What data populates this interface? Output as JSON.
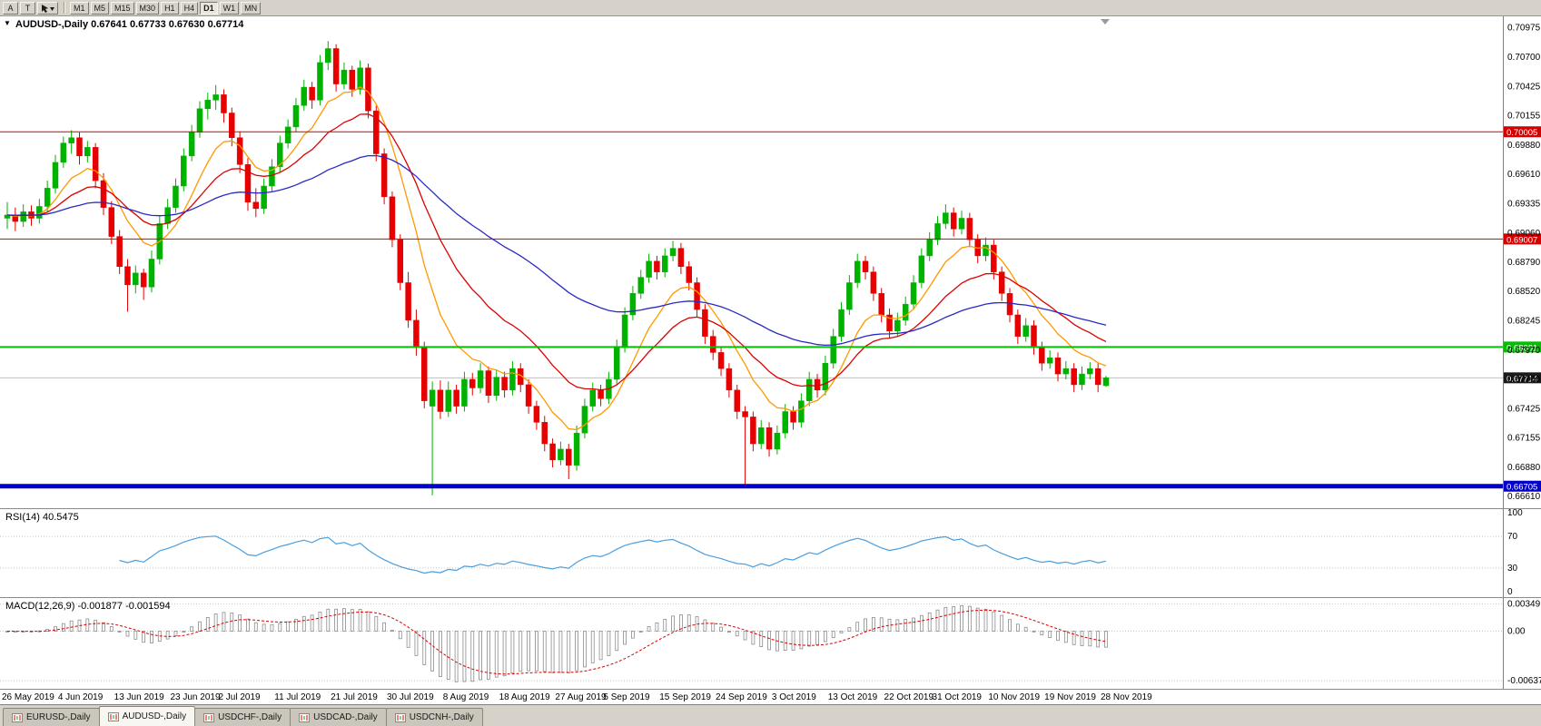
{
  "toolbar": {
    "buttons": [
      {
        "label": "A"
      },
      {
        "label": "T"
      }
    ],
    "timeframes": [
      "M1",
      "M5",
      "M15",
      "M30",
      "H1",
      "H4",
      "D1",
      "W1",
      "MN"
    ],
    "active_timeframe": "D1"
  },
  "chart": {
    "title_text": "AUDUSD-,Daily  0.67641 0.67733 0.67630 0.67714",
    "symbol": "AUDUSD-",
    "period": "Daily"
  },
  "chart_data": {
    "type": "candlestick",
    "symbol": "AUDUSD",
    "timeframe": "Daily",
    "last_ohlc": {
      "open": 0.67641,
      "high": 0.67733,
      "low": 0.6763,
      "close": 0.67714
    },
    "ylim": [
      0.665,
      0.7108
    ],
    "y_axis_labels": [
      "0.70975",
      "0.70700",
      "0.70425",
      "0.70155",
      "0.69880",
      "0.69610",
      "0.69335",
      "0.69060",
      "0.68790",
      "0.68520",
      "0.68245",
      "0.67970",
      "0.67700",
      "0.67425",
      "0.67155",
      "0.66880",
      "0.66610"
    ],
    "x_labels": [
      "26 May 2019",
      "4 Jun 2019",
      "13 Jun 2019",
      "23 Jun 2019",
      "2 Jul 2019",
      "11 Jul 2019",
      "21 Jul 2019",
      "30 Jul 2019",
      "8 Aug 2019",
      "18 Aug 2019",
      "27 Aug 2019",
      "5 Sep 2019",
      "15 Sep 2019",
      "24 Sep 2019",
      "3 Oct 2019",
      "13 Oct 2019",
      "22 Oct 2019",
      "31 Oct 2019",
      "10 Nov 2019",
      "19 Nov 2019",
      "28 Nov 2019"
    ],
    "candles": [
      [
        0.692,
        0.6935,
        0.691,
        0.6923
      ],
      [
        0.6923,
        0.693,
        0.6908,
        0.6917
      ],
      [
        0.6917,
        0.6933,
        0.6912,
        0.6926
      ],
      [
        0.6926,
        0.6932,
        0.6913,
        0.692
      ],
      [
        0.692,
        0.6938,
        0.6915,
        0.6931
      ],
      [
        0.6931,
        0.6955,
        0.6926,
        0.6948
      ],
      [
        0.6948,
        0.6979,
        0.6943,
        0.6972
      ],
      [
        0.6972,
        0.6996,
        0.6967,
        0.699
      ],
      [
        0.699,
        0.7002,
        0.698,
        0.6995
      ],
      [
        0.6995,
        0.7,
        0.697,
        0.6978
      ],
      [
        0.6978,
        0.6992,
        0.6972,
        0.6986
      ],
      [
        0.6986,
        0.699,
        0.6948,
        0.6955
      ],
      [
        0.6955,
        0.6962,
        0.6923,
        0.693
      ],
      [
        0.693,
        0.6936,
        0.6896,
        0.6903
      ],
      [
        0.6903,
        0.6909,
        0.6868,
        0.6875
      ],
      [
        0.6875,
        0.6882,
        0.6833,
        0.6858
      ],
      [
        0.6858,
        0.6876,
        0.685,
        0.6869
      ],
      [
        0.6869,
        0.6873,
        0.6844,
        0.6856
      ],
      [
        0.6856,
        0.689,
        0.6851,
        0.6882
      ],
      [
        0.6882,
        0.6922,
        0.6877,
        0.6915
      ],
      [
        0.6915,
        0.6938,
        0.691,
        0.693
      ],
      [
        0.693,
        0.6957,
        0.6925,
        0.695
      ],
      [
        0.695,
        0.6985,
        0.6945,
        0.6978
      ],
      [
        0.6978,
        0.7007,
        0.6973,
        0.7
      ],
      [
        0.7,
        0.7029,
        0.6995,
        0.7022
      ],
      [
        0.7022,
        0.7037,
        0.7012,
        0.703
      ],
      [
        0.703,
        0.7044,
        0.7021,
        0.7035
      ],
      [
        0.7035,
        0.704,
        0.7009,
        0.7018
      ],
      [
        0.7018,
        0.7023,
        0.6987,
        0.6995
      ],
      [
        0.6995,
        0.7001,
        0.6962,
        0.697
      ],
      [
        0.697,
        0.6976,
        0.6927,
        0.6935
      ],
      [
        0.6935,
        0.6948,
        0.6921,
        0.6929
      ],
      [
        0.6929,
        0.6957,
        0.6924,
        0.695
      ],
      [
        0.695,
        0.6975,
        0.6945,
        0.6968
      ],
      [
        0.6968,
        0.6997,
        0.6963,
        0.699
      ],
      [
        0.699,
        0.7012,
        0.6985,
        0.7005
      ],
      [
        0.7005,
        0.7032,
        0.7,
        0.7025
      ],
      [
        0.7025,
        0.7049,
        0.702,
        0.7042
      ],
      [
        0.7042,
        0.7047,
        0.7022,
        0.703
      ],
      [
        0.703,
        0.7072,
        0.7025,
        0.7065
      ],
      [
        0.7065,
        0.7085,
        0.7058,
        0.7078
      ],
      [
        0.7078,
        0.7082,
        0.7038,
        0.7045
      ],
      [
        0.7045,
        0.7065,
        0.704,
        0.7058
      ],
      [
        0.7058,
        0.7062,
        0.7033,
        0.704
      ],
      [
        0.704,
        0.7067,
        0.7035,
        0.706
      ],
      [
        0.706,
        0.7064,
        0.7013,
        0.702
      ],
      [
        0.702,
        0.7025,
        0.6973,
        0.698
      ],
      [
        0.698,
        0.6985,
        0.6933,
        0.694
      ],
      [
        0.694,
        0.6945,
        0.6893,
        0.69
      ],
      [
        0.69,
        0.6905,
        0.6853,
        0.686
      ],
      [
        0.686,
        0.687,
        0.6818,
        0.6825
      ],
      [
        0.6825,
        0.6835,
        0.6792,
        0.68
      ],
      [
        0.68,
        0.6805,
        0.6743,
        0.675
      ],
      [
        0.6745,
        0.6768,
        0.6662,
        0.676
      ],
      [
        0.676,
        0.6769,
        0.6733,
        0.674
      ],
      [
        0.674,
        0.6768,
        0.6735,
        0.676
      ],
      [
        0.676,
        0.6765,
        0.6738,
        0.6745
      ],
      [
        0.6745,
        0.6777,
        0.674,
        0.677
      ],
      [
        0.677,
        0.6776,
        0.6755,
        0.6762
      ],
      [
        0.6762,
        0.6785,
        0.6757,
        0.6778
      ],
      [
        0.6778,
        0.6782,
        0.6748,
        0.6755
      ],
      [
        0.6755,
        0.6779,
        0.675,
        0.6772
      ],
      [
        0.6772,
        0.6777,
        0.6753,
        0.676
      ],
      [
        0.676,
        0.6787,
        0.6755,
        0.678
      ],
      [
        0.678,
        0.6785,
        0.6758,
        0.6765
      ],
      [
        0.6765,
        0.677,
        0.6738,
        0.6745
      ],
      [
        0.6745,
        0.675,
        0.6723,
        0.673
      ],
      [
        0.673,
        0.6736,
        0.6703,
        0.671
      ],
      [
        0.671,
        0.6715,
        0.6688,
        0.6695
      ],
      [
        0.6695,
        0.6712,
        0.669,
        0.6705
      ],
      [
        0.6705,
        0.671,
        0.6677,
        0.669
      ],
      [
        0.669,
        0.6727,
        0.6685,
        0.672
      ],
      [
        0.672,
        0.6752,
        0.6715,
        0.6745
      ],
      [
        0.6745,
        0.6767,
        0.674,
        0.676
      ],
      [
        0.676,
        0.6765,
        0.6745,
        0.6752
      ],
      [
        0.6752,
        0.6777,
        0.6747,
        0.677
      ],
      [
        0.677,
        0.6807,
        0.6765,
        0.68
      ],
      [
        0.68,
        0.6837,
        0.6795,
        0.683
      ],
      [
        0.683,
        0.6857,
        0.6825,
        0.685
      ],
      [
        0.685,
        0.6872,
        0.6845,
        0.6865
      ],
      [
        0.6865,
        0.6887,
        0.686,
        0.688
      ],
      [
        0.688,
        0.6885,
        0.6863,
        0.687
      ],
      [
        0.687,
        0.6892,
        0.6865,
        0.6885
      ],
      [
        0.6885,
        0.6899,
        0.688,
        0.6892
      ],
      [
        0.6892,
        0.6897,
        0.6868,
        0.6875
      ],
      [
        0.6875,
        0.688,
        0.6853,
        0.686
      ],
      [
        0.686,
        0.6865,
        0.6828,
        0.6835
      ],
      [
        0.6835,
        0.684,
        0.6803,
        0.681
      ],
      [
        0.681,
        0.6816,
        0.6788,
        0.6795
      ],
      [
        0.6795,
        0.68,
        0.6773,
        0.678
      ],
      [
        0.678,
        0.6785,
        0.6753,
        0.676
      ],
      [
        0.676,
        0.6765,
        0.6733,
        0.674
      ],
      [
        0.674,
        0.6745,
        0.667,
        0.6735
      ],
      [
        0.6735,
        0.674,
        0.6703,
        0.671
      ],
      [
        0.671,
        0.6732,
        0.6705,
        0.6725
      ],
      [
        0.6725,
        0.673,
        0.6698,
        0.6705
      ],
      [
        0.6705,
        0.6727,
        0.67,
        0.672
      ],
      [
        0.672,
        0.6747,
        0.6715,
        0.674
      ],
      [
        0.674,
        0.6745,
        0.6723,
        0.673
      ],
      [
        0.673,
        0.6757,
        0.6725,
        0.675
      ],
      [
        0.675,
        0.6777,
        0.6745,
        0.677
      ],
      [
        0.677,
        0.6775,
        0.6753,
        0.676
      ],
      [
        0.676,
        0.6792,
        0.6755,
        0.6785
      ],
      [
        0.6785,
        0.6817,
        0.678,
        0.681
      ],
      [
        0.681,
        0.6842,
        0.6805,
        0.6835
      ],
      [
        0.6835,
        0.6867,
        0.683,
        0.686
      ],
      [
        0.686,
        0.6887,
        0.6855,
        0.688
      ],
      [
        0.688,
        0.6885,
        0.6863,
        0.687
      ],
      [
        0.687,
        0.6875,
        0.6843,
        0.685
      ],
      [
        0.685,
        0.6855,
        0.6823,
        0.683
      ],
      [
        0.683,
        0.6836,
        0.6808,
        0.6815
      ],
      [
        0.6815,
        0.6832,
        0.681,
        0.6825
      ],
      [
        0.6825,
        0.6847,
        0.682,
        0.684
      ],
      [
        0.684,
        0.6867,
        0.6835,
        0.686
      ],
      [
        0.686,
        0.6892,
        0.6855,
        0.6885
      ],
      [
        0.6885,
        0.6907,
        0.688,
        0.69
      ],
      [
        0.69,
        0.6922,
        0.6895,
        0.6915
      ],
      [
        0.6915,
        0.6933,
        0.691,
        0.6925
      ],
      [
        0.6925,
        0.693,
        0.6903,
        0.691
      ],
      [
        0.691,
        0.6927,
        0.6905,
        0.692
      ],
      [
        0.692,
        0.6925,
        0.6893,
        0.69
      ],
      [
        0.69,
        0.6905,
        0.6878,
        0.6885
      ],
      [
        0.6885,
        0.6902,
        0.688,
        0.6895
      ],
      [
        0.6895,
        0.69,
        0.6863,
        0.687
      ],
      [
        0.687,
        0.6875,
        0.6843,
        0.685
      ],
      [
        0.685,
        0.6855,
        0.6823,
        0.683
      ],
      [
        0.683,
        0.6835,
        0.6803,
        0.681
      ],
      [
        0.681,
        0.6827,
        0.6805,
        0.682
      ],
      [
        0.682,
        0.6825,
        0.6793,
        0.68
      ],
      [
        0.68,
        0.6805,
        0.6778,
        0.6785
      ],
      [
        0.6785,
        0.6797,
        0.678,
        0.679
      ],
      [
        0.679,
        0.6795,
        0.6768,
        0.6775
      ],
      [
        0.6775,
        0.6787,
        0.677,
        0.678
      ],
      [
        0.678,
        0.6785,
        0.6758,
        0.6765
      ],
      [
        0.6765,
        0.6782,
        0.676,
        0.6775
      ],
      [
        0.6775,
        0.6786,
        0.677,
        0.678
      ],
      [
        0.678,
        0.6785,
        0.6758,
        0.6765
      ],
      [
        0.67641,
        0.67733,
        0.6763,
        0.67714
      ]
    ],
    "colors": {
      "bull": "#00b200",
      "bear": "#e60000",
      "ma_fast": "#ff9900",
      "ma_mid": "#dd0000",
      "ma_slow": "#2929c8",
      "rsi": "#4a9ede",
      "macd_hist": "#8c8c8c",
      "macd_signal": "#e00000",
      "grid": "#c4c4c4",
      "axis": "#808080",
      "bid_line": "#c0c0c0"
    },
    "ma_overlays": [
      {
        "period": 9,
        "color_key": "ma_fast"
      },
      {
        "period": 20,
        "color_key": "ma_mid"
      },
      {
        "period": 55,
        "color_key": "ma_slow"
      }
    ],
    "hlines": [
      {
        "value": 0.70005,
        "label": "0.70005",
        "color": "#d40000",
        "width": 1
      },
      {
        "value": 0.69007,
        "label": "0.69007",
        "color": "#d40000",
        "width": 1
      },
      {
        "value": 0.68001,
        "label": "0.68001",
        "color": "#00c000",
        "width": 2
      },
      {
        "value": 0.66705,
        "label": "0.66705",
        "color": "#0000c8",
        "width": 5
      }
    ],
    "current_price": {
      "value": 0.67714,
      "label": "0.67714",
      "box_color": "#1a1a1a"
    },
    "indicators": {
      "rsi": {
        "name": "RSI",
        "period": 14,
        "display": "RSI(14) 40.5475",
        "value": 40.5475,
        "levels": [
          100,
          70,
          30,
          0
        ],
        "level_lines": [
          70,
          30
        ]
      },
      "macd": {
        "name": "MACD",
        "fast": 12,
        "slow": 26,
        "signal": 9,
        "display": "MACD(12,26,9) -0.001877 -0.001594",
        "values": [
          -0.001877,
          -0.001594
        ],
        "axis_labels": [
          "0.00349",
          "0.00",
          "-0.00637"
        ],
        "axis_values": [
          0.00349,
          0,
          -0.00637
        ]
      }
    }
  },
  "tabbar": {
    "tabs": [
      {
        "label": "EURUSD-,Daily",
        "active": false
      },
      {
        "label": "AUDUSD-,Daily",
        "active": true
      },
      {
        "label": "USDCHF-,Daily",
        "active": false
      },
      {
        "label": "USDCAD-,Daily",
        "active": false
      },
      {
        "label": "USDCNH-,Daily",
        "active": false
      }
    ]
  }
}
